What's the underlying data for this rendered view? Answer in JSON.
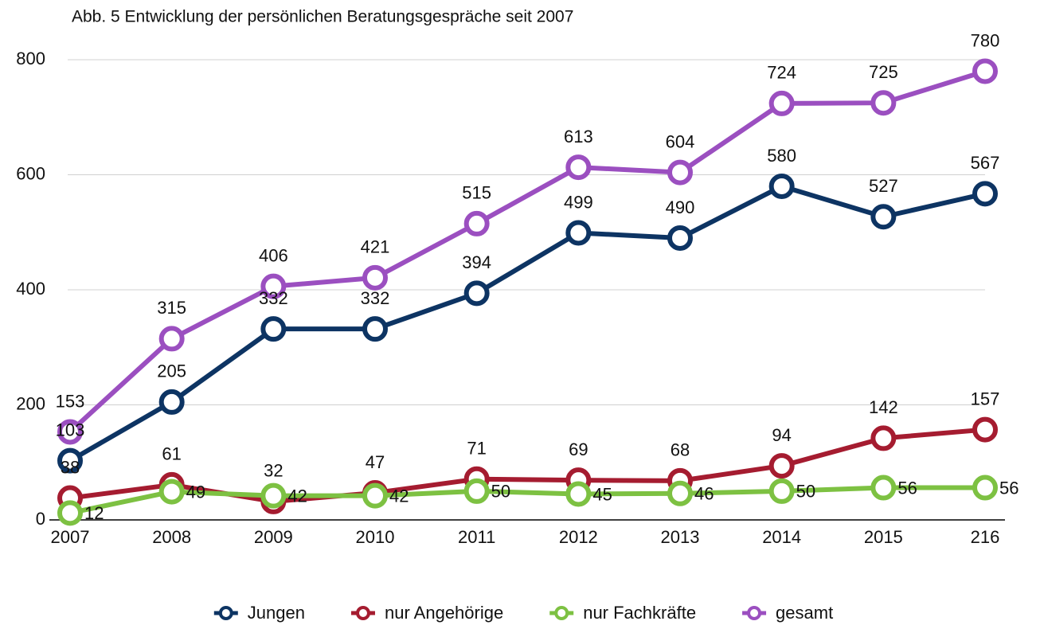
{
  "chart_data": {
    "type": "line",
    "title": "Abb. 5 Entwicklung der persönlichen Beratungsgespräche seit 2007",
    "categories": [
      "2007",
      "2008",
      "2009",
      "2010",
      "2011",
      "2012",
      "2013",
      "2014",
      "2015",
      "216"
    ],
    "series": [
      {
        "name": "Jungen",
        "color": "#0d3463",
        "values": [
          103,
          205,
          332,
          332,
          394,
          499,
          490,
          580,
          527,
          567
        ]
      },
      {
        "name": "nur Angehörige",
        "color": "#a51c30",
        "values": [
          38,
          61,
          32,
          47,
          71,
          69,
          68,
          94,
          142,
          157
        ]
      },
      {
        "name": "nur Fachkräfte",
        "color": "#7dc142",
        "values": [
          12,
          49,
          42,
          42,
          50,
          45,
          46,
          50,
          56,
          56
        ]
      },
      {
        "name": "gesamt",
        "color": "#9b4fc0",
        "values": [
          153,
          315,
          406,
          421,
          515,
          613,
          604,
          724,
          725,
          780
        ]
      }
    ],
    "ylim": [
      0,
      800
    ],
    "yticks": [
      0,
      200,
      400,
      600,
      800
    ],
    "grid": true,
    "legend": "bottom"
  }
}
